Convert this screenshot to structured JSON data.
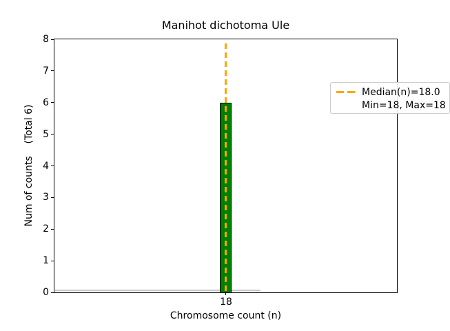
{
  "chart_data": {
    "type": "bar",
    "title": "Manihot dichotoma Ule",
    "xlabel": "Chromosome count (n)",
    "ylabel": "Num of counts    (Total 6)",
    "categories": [
      18
    ],
    "values": [
      6
    ],
    "total_counts": 6,
    "median_n": 18.0,
    "min_n": 18,
    "max_n": 18,
    "ylim": [
      0,
      8
    ],
    "ytick_labels": [
      "0",
      "1",
      "2",
      "3",
      "4",
      "5",
      "6",
      "7",
      "8"
    ],
    "xtick_labels": [
      "18"
    ],
    "grid": false,
    "legend_position": "upper right",
    "legend": {
      "line1": "Median(n)=18.0",
      "line2": "Min=18, Max=18"
    },
    "colors": {
      "bar_fill": "#008000",
      "bar_edge": "#000000",
      "median_line": "#FFA500",
      "zero_baseline": "#c8c8c8",
      "legend_border": "#cccccc",
      "text": "#000000",
      "background": "#ffffff"
    }
  }
}
